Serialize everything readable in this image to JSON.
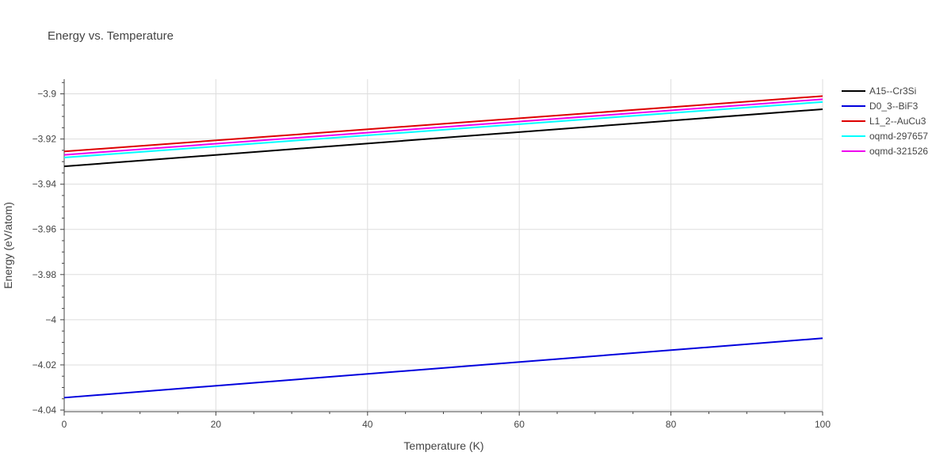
{
  "chart_data": {
    "type": "line",
    "title": "Energy vs. Temperature",
    "xlabel": "Temperature (K)",
    "ylabel": "Energy (eV/atom)",
    "xlim": [
      0,
      100
    ],
    "ylim": [
      -4.0407,
      -3.8935
    ],
    "x_ticks": [
      0,
      20,
      40,
      60,
      80,
      100
    ],
    "x_tick_labels": [
      "0",
      "20",
      "40",
      "60",
      "80",
      "100"
    ],
    "y_ticks": [
      -3.9,
      -3.92,
      -3.94,
      -3.96,
      -3.98,
      -4.0,
      -4.02,
      -4.04
    ],
    "y_tick_labels": [
      "−3.9",
      "−3.92",
      "−3.94",
      "−3.96",
      "−3.98",
      "−4",
      "−4.02",
      "−4.04"
    ],
    "grid": true,
    "legend_position": "top-right, outside plot",
    "series": [
      {
        "name": "A15--Cr3Si",
        "color": "#000000",
        "x": [
          0,
          100
        ],
        "y": [
          -3.9321,
          -3.9068
        ]
      },
      {
        "name": "D0_3--BiF3",
        "color": "#0000dd",
        "x": [
          0,
          100
        ],
        "y": [
          -4.0345,
          -4.0082
        ]
      },
      {
        "name": "L1_2--AuCu3",
        "color": "#dd0000",
        "x": [
          0,
          100
        ],
        "y": [
          -3.9255,
          -3.901
        ]
      },
      {
        "name": "oqmd-297657",
        "color": "#00ffff",
        "x": [
          0,
          100
        ],
        "y": [
          -3.9282,
          -3.9036
        ]
      },
      {
        "name": "oqmd-321526",
        "color": "#ee00ee",
        "x": [
          0,
          100
        ],
        "y": [
          -3.927,
          -3.9024
        ]
      }
    ]
  }
}
